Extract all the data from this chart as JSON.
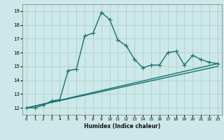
{
  "xlabel": "Humidex (Indice chaleur)",
  "xlim": [
    -0.5,
    23.5
  ],
  "ylim": [
    11.5,
    19.5
  ],
  "xticks": [
    0,
    1,
    2,
    3,
    4,
    5,
    6,
    7,
    8,
    9,
    10,
    11,
    12,
    13,
    14,
    15,
    16,
    17,
    18,
    19,
    20,
    21,
    22,
    23
  ],
  "yticks": [
    12,
    13,
    14,
    15,
    16,
    17,
    18,
    19
  ],
  "bg_color": "#cce8e8",
  "grid_color": "#afd0d0",
  "line_color": "#1a7070",
  "line1_x": [
    0,
    1,
    2,
    3,
    4,
    5,
    6,
    7,
    8,
    9,
    10,
    11,
    12,
    13,
    14,
    15,
    16,
    17,
    18,
    19,
    20,
    21,
    22,
    23
  ],
  "line1_y": [
    12.0,
    12.0,
    12.2,
    12.5,
    12.6,
    14.7,
    14.8,
    17.2,
    17.4,
    18.9,
    18.4,
    16.9,
    16.5,
    15.5,
    14.9,
    15.1,
    15.1,
    16.0,
    16.1,
    15.1,
    15.8,
    15.5,
    15.3,
    15.2
  ],
  "line2_x": [
    0,
    23
  ],
  "line2_y": [
    12.0,
    15.2
  ],
  "line3_x": [
    0,
    23
  ],
  "line3_y": [
    12.0,
    15.0
  ],
  "marker": "+",
  "markersize": 4,
  "linewidth": 1.0
}
